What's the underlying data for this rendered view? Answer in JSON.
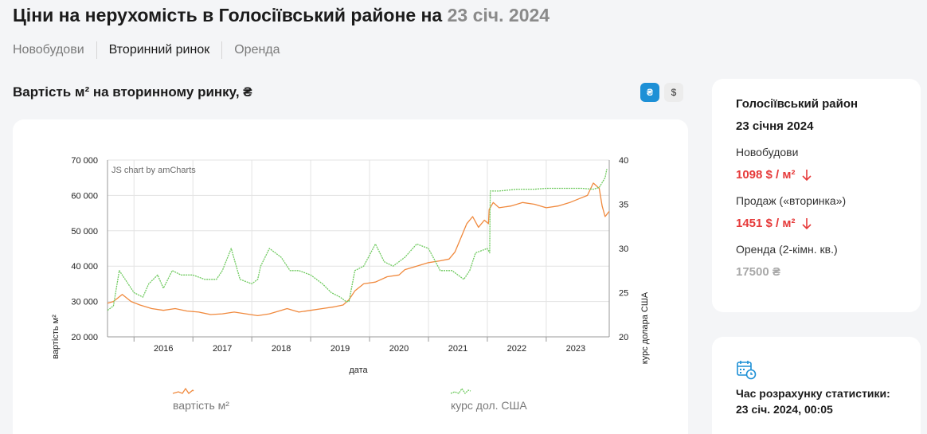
{
  "header": {
    "title": "Ціни на нерухомість в Голосіївський районе на",
    "title_date": "23 січ. 2024"
  },
  "tabs": [
    {
      "label": "Новобудови",
      "active": false
    },
    {
      "label": "Вторинний ринок",
      "active": true
    },
    {
      "label": "Оренда",
      "active": false
    }
  ],
  "section": {
    "title": "Вартість м² на вторинному ринку, ₴",
    "currency_uah": "₴",
    "currency_usd": "$"
  },
  "chart_data": {
    "type": "line",
    "credit": "JS chart by amCharts",
    "xlabel": "дата",
    "ylabel_left": "вартість м²",
    "ylabel_right": "курс долара США",
    "x_ticks": [
      "2016",
      "2017",
      "2018",
      "2019",
      "2020",
      "2021",
      "2022",
      "2023"
    ],
    "x_range": [
      2015.55,
      2024.07
    ],
    "y_left_ticks": [
      "20 000",
      "30 000",
      "40 000",
      "50 000",
      "60 000",
      "70 000"
    ],
    "y_left_range": [
      20000,
      70000
    ],
    "y_right_ticks": [
      "20",
      "25",
      "30",
      "35",
      "40"
    ],
    "y_right_range": [
      20,
      40
    ],
    "grid": true,
    "legend_position": "bottom",
    "series": [
      {
        "name": "вартість м²",
        "axis": "left",
        "color": "#f0893d",
        "x": [
          2015.55,
          2015.65,
          2015.8,
          2015.95,
          2016.1,
          2016.3,
          2016.5,
          2016.7,
          2016.9,
          2017.1,
          2017.3,
          2017.5,
          2017.7,
          2017.9,
          2018.1,
          2018.3,
          2018.5,
          2018.6,
          2018.8,
          2019.0,
          2019.2,
          2019.4,
          2019.55,
          2019.65,
          2019.75,
          2019.9,
          2020.1,
          2020.3,
          2020.5,
          2020.6,
          2020.8,
          2021.0,
          2021.2,
          2021.35,
          2021.45,
          2021.55,
          2021.65,
          2021.75,
          2021.85,
          2021.95,
          2022.02,
          2022.03,
          2022.1,
          2022.2,
          2022.4,
          2022.6,
          2022.8,
          2023.0,
          2023.2,
          2023.4,
          2023.55,
          2023.7,
          2023.8,
          2023.9,
          2023.95,
          2024.0,
          2024.07
        ],
        "y": [
          29500,
          30000,
          32000,
          30000,
          29000,
          28000,
          27500,
          28000,
          27300,
          27000,
          26300,
          26500,
          27000,
          26500,
          26000,
          26500,
          27500,
          28000,
          27000,
          27500,
          28000,
          28500,
          29000,
          30500,
          33000,
          35000,
          35500,
          37000,
          37500,
          39000,
          40000,
          41000,
          41500,
          42000,
          44000,
          48000,
          52000,
          54000,
          51000,
          53000,
          52000,
          56000,
          58000,
          56500,
          57000,
          58000,
          57500,
          56500,
          57000,
          58000,
          59000,
          60000,
          63500,
          62000,
          57000,
          54000,
          55500
        ]
      },
      {
        "name": "курс дол. США",
        "axis": "right",
        "color": "#6fca5f",
        "x": [
          2015.55,
          2015.65,
          2015.75,
          2015.85,
          2016.0,
          2016.15,
          2016.25,
          2016.4,
          2016.5,
          2016.65,
          2016.8,
          2017.0,
          2017.2,
          2017.4,
          2017.5,
          2017.65,
          2017.8,
          2018.0,
          2018.1,
          2018.15,
          2018.3,
          2018.5,
          2018.65,
          2018.8,
          2019.0,
          2019.2,
          2019.35,
          2019.5,
          2019.6,
          2019.65,
          2019.75,
          2019.9,
          2020.1,
          2020.25,
          2020.4,
          2020.6,
          2020.8,
          2021.0,
          2021.2,
          2021.4,
          2021.5,
          2021.6,
          2021.7,
          2021.8,
          2022.0,
          2022.04,
          2022.05,
          2022.2,
          2022.5,
          2022.8,
          2023.0,
          2023.3,
          2023.6,
          2023.8,
          2023.9,
          2024.0,
          2024.03
        ],
        "y": [
          23,
          23.5,
          27.5,
          26.5,
          25,
          24.5,
          26,
          27,
          25.5,
          27.5,
          27,
          27,
          26.5,
          26.5,
          27.5,
          30,
          26.5,
          26,
          26.5,
          28,
          30,
          29,
          27.5,
          27.5,
          27,
          26,
          25,
          24.5,
          24,
          24,
          27.5,
          28,
          30.5,
          28.5,
          28,
          29,
          30.5,
          30,
          27.5,
          27.5,
          27,
          26.5,
          27.5,
          29.5,
          30,
          29.5,
          36.5,
          36.5,
          36.7,
          36.7,
          36.8,
          36.8,
          36.8,
          36.7,
          36.9,
          38,
          39
        ]
      }
    ]
  },
  "side": {
    "district": "Голосіївський район",
    "date": "23 січня 2024",
    "new_label": "Новобудови",
    "new_value": "1098 $ / м²",
    "sale_label": "Продаж («вторинка»)",
    "sale_value": "1451 $ / м²",
    "rent_label": "Оренда (2-кімн. кв.)",
    "rent_value": "17500 ₴",
    "calc_label": "Час розрахунку статистики:",
    "calc_time": "23 січ. 2024, 00:05"
  },
  "colors": {
    "accent": "#1e90d6",
    "down": "#e63a3a",
    "price_line": "#f0893d",
    "usd_line": "#6fca5f"
  },
  "icons": {
    "new_trend": "arrow-down-icon",
    "sale_trend": "arrow-down-icon",
    "calc": "calendar-clock-icon"
  }
}
